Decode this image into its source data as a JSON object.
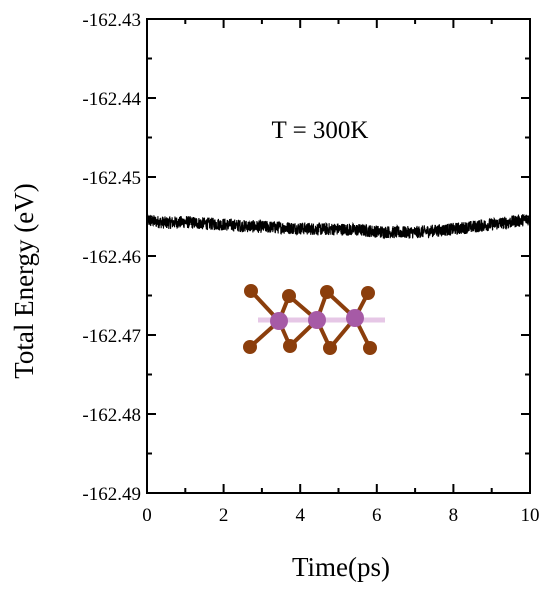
{
  "chart_data": {
    "type": "line",
    "xlabel": "Time(ps)",
    "ylabel": "Total Energy (eV)",
    "annotation": "T = 300K",
    "xlim": [
      0,
      10
    ],
    "ylim": [
      -162.49,
      -162.43
    ],
    "x_ticks": [
      0,
      2,
      4,
      6,
      8,
      10
    ],
    "x_tick_labels": [
      "0",
      "2",
      "4",
      "6",
      "8",
      "10"
    ],
    "y_ticks": [
      -162.43,
      -162.44,
      -162.45,
      -162.46,
      -162.47,
      -162.48,
      -162.49
    ],
    "y_tick_labels": [
      "-162.43",
      "-162.44",
      "-162.45",
      "-162.46",
      "-162.47",
      "-162.48",
      "-162.49"
    ],
    "grid": false,
    "series": [
      {
        "color": "#000000",
        "x": [
          0,
          0.5,
          1,
          1.5,
          2,
          2.5,
          3,
          3.5,
          4,
          4.5,
          5,
          5.5,
          6,
          6.5,
          7,
          7.5,
          8,
          8.5,
          9,
          9.5,
          10
        ],
        "values": [
          -162.4555,
          -162.4558,
          -162.4557,
          -162.4559,
          -162.456,
          -162.4562,
          -162.4563,
          -162.4564,
          -162.4565,
          -162.4566,
          -162.4566,
          -162.4567,
          -162.4569,
          -162.457,
          -162.457,
          -162.4568,
          -162.4566,
          -162.4563,
          -162.456,
          -162.4557,
          -162.4553
        ],
        "noise_amplitude": 0.0008
      }
    ],
    "inset": {
      "description_icon": "molecular-structure-inset",
      "colors": {
        "metal": "#a65aa6",
        "ligand": "#8b3e0c",
        "bond": "#e6c7e6"
      }
    }
  }
}
